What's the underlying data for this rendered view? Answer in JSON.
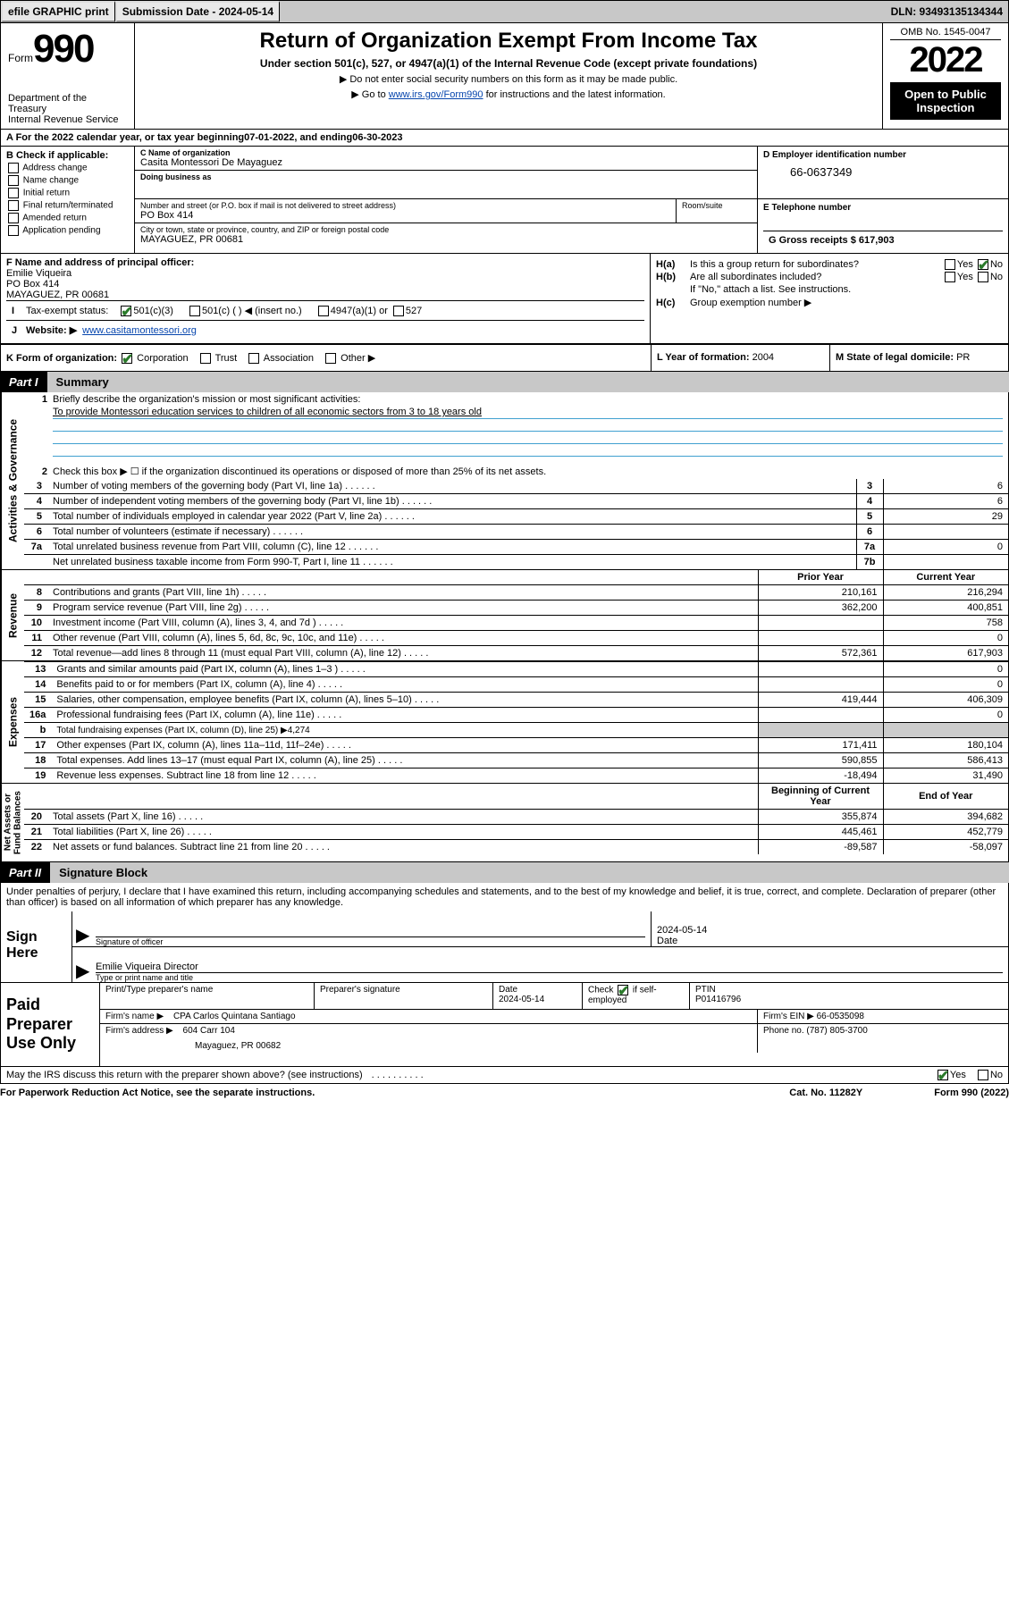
{
  "topbar": {
    "efile": "efile GRAPHIC print",
    "submission_label": "Submission Date - 2024-05-14",
    "dln_label": "DLN: 93493135134344"
  },
  "header": {
    "form_word": "Form",
    "form_number": "990",
    "dept": "Department of the Treasury\nInternal Revenue Service",
    "title": "Return of Organization Exempt From Income Tax",
    "subtitle": "Under section 501(c), 527, or 4947(a)(1) of the Internal Revenue Code (except private foundations)",
    "note1": "Do not enter social security numbers on this form as it may be made public.",
    "note2_prefix": "Go to ",
    "note2_link": "www.irs.gov/Form990",
    "note2_suffix": " for instructions and the latest information.",
    "omb": "OMB No. 1545-0047",
    "year": "2022",
    "open": "Open to Public Inspection"
  },
  "row_a": {
    "prefix": "A For the 2022 calendar year, or tax year beginning ",
    "begin": "07-01-2022",
    "mid": " , and ending ",
    "end": "06-30-2023"
  },
  "section_b": {
    "label": "B Check if applicable:",
    "opts": [
      "Address change",
      "Name change",
      "Initial return",
      "Final return/terminated",
      "Amended return",
      "Application pending"
    ]
  },
  "section_c": {
    "name_label": "C Name of organization",
    "name": "Casita Montessori De Mayaguez",
    "dba_label": "Doing business as",
    "dba": "",
    "addr_label": "Number and street (or P.O. box if mail is not delivered to street address)",
    "addr": "PO Box 414",
    "room_label": "Room/suite",
    "city_label": "City or town, state or province, country, and ZIP or foreign postal code",
    "city": "MAYAGUEZ, PR  00681"
  },
  "section_d": {
    "label": "D Employer identification number",
    "ein": "66-0637349"
  },
  "section_e": {
    "label": "E Telephone number",
    "phone": ""
  },
  "section_g": {
    "label": "G Gross receipts $",
    "val": "617,903"
  },
  "section_f": {
    "label": "F  Name and address of principal officer:",
    "name": "Emilie Viqueira",
    "addr": "PO Box 414",
    "city": "MAYAGUEZ, PR  00681"
  },
  "section_h": {
    "ha": "Is this a group return for subordinates?",
    "hb": "Are all subordinates included?",
    "hb_note": "If \"No,\" attach a list. See instructions.",
    "hc": "Group exemption number ▶",
    "yes": "Yes",
    "no": "No"
  },
  "row_i": {
    "label": "Tax-exempt status:",
    "opts": [
      "501(c)(3)",
      "501(c) (  ) ◀ (insert no.)",
      "4947(a)(1) or",
      "527"
    ]
  },
  "row_j": {
    "label": "Website: ▶",
    "val": "www.casitamontessori.org"
  },
  "row_k": {
    "label": "K Form of organization:",
    "opts": [
      "Corporation",
      "Trust",
      "Association",
      "Other ▶"
    ]
  },
  "row_l": {
    "label": "L Year of formation:",
    "val": "2004"
  },
  "row_m": {
    "label": "M State of legal domicile:",
    "val": "PR"
  },
  "part1": {
    "num": "Part I",
    "title": "Summary"
  },
  "summary": {
    "line1": "Briefly describe the organization's mission or most significant activities:",
    "mission": "To provide Montessori education services to children of all economic sectors from 3 to 18 years old",
    "line2": "Check this box ▶ ☐  if the organization discontinued its operations or disposed of more than 25% of its net assets.",
    "gov_rows": [
      {
        "n": "3",
        "t": "Number of voting members of the governing body (Part VI, line 1a)",
        "k": "3",
        "v": "6"
      },
      {
        "n": "4",
        "t": "Number of independent voting members of the governing body (Part VI, line 1b)",
        "k": "4",
        "v": "6"
      },
      {
        "n": "5",
        "t": "Total number of individuals employed in calendar year 2022 (Part V, line 2a)",
        "k": "5",
        "v": "29"
      },
      {
        "n": "6",
        "t": "Total number of volunteers (estimate if necessary)",
        "k": "6",
        "v": ""
      },
      {
        "n": "7a",
        "t": "Total unrelated business revenue from Part VIII, column (C), line 12",
        "k": "7a",
        "v": "0"
      },
      {
        "n": "",
        "t": "Net unrelated business taxable income from Form 990-T, Part I, line 11",
        "k": "7b",
        "v": ""
      }
    ],
    "col_prior": "Prior Year",
    "col_current": "Current Year",
    "rev_rows": [
      {
        "n": "8",
        "t": "Contributions and grants (Part VIII, line 1h)",
        "p": "210,161",
        "c": "216,294"
      },
      {
        "n": "9",
        "t": "Program service revenue (Part VIII, line 2g)",
        "p": "362,200",
        "c": "400,851"
      },
      {
        "n": "10",
        "t": "Investment income (Part VIII, column (A), lines 3, 4, and 7d )",
        "p": "",
        "c": "758"
      },
      {
        "n": "11",
        "t": "Other revenue (Part VIII, column (A), lines 5, 6d, 8c, 9c, 10c, and 11e)",
        "p": "",
        "c": "0"
      },
      {
        "n": "12",
        "t": "Total revenue—add lines 8 through 11 (must equal Part VIII, column (A), line 12)",
        "p": "572,361",
        "c": "617,903"
      }
    ],
    "exp_rows": [
      {
        "n": "13",
        "t": "Grants and similar amounts paid (Part IX, column (A), lines 1–3 )",
        "p": "",
        "c": "0"
      },
      {
        "n": "14",
        "t": "Benefits paid to or for members (Part IX, column (A), line 4)",
        "p": "",
        "c": "0"
      },
      {
        "n": "15",
        "t": "Salaries, other compensation, employee benefits (Part IX, column (A), lines 5–10)",
        "p": "419,444",
        "c": "406,309"
      },
      {
        "n": "16a",
        "t": "Professional fundraising fees (Part IX, column (A), line 11e)",
        "p": "",
        "c": "0"
      },
      {
        "n": "b",
        "t": "Total fundraising expenses (Part IX, column (D), line 25) ▶4,274",
        "p": null,
        "c": null
      },
      {
        "n": "17",
        "t": "Other expenses (Part IX, column (A), lines 11a–11d, 11f–24e)",
        "p": "171,411",
        "c": "180,104"
      },
      {
        "n": "18",
        "t": "Total expenses. Add lines 13–17 (must equal Part IX, column (A), line 25)",
        "p": "590,855",
        "c": "586,413"
      },
      {
        "n": "19",
        "t": "Revenue less expenses. Subtract line 18 from line 12",
        "p": "-18,494",
        "c": "31,490"
      }
    ],
    "col_begin": "Beginning of Current Year",
    "col_end": "End of Year",
    "na_rows": [
      {
        "n": "20",
        "t": "Total assets (Part X, line 16)",
        "p": "355,874",
        "c": "394,682"
      },
      {
        "n": "21",
        "t": "Total liabilities (Part X, line 26)",
        "p": "445,461",
        "c": "452,779"
      },
      {
        "n": "22",
        "t": "Net assets or fund balances. Subtract line 21 from line 20",
        "p": "-89,587",
        "c": "-58,097"
      }
    ],
    "vtabs": {
      "gov": "Activities & Governance",
      "rev": "Revenue",
      "exp": "Expenses",
      "na": "Net Assets or\nFund Balances"
    }
  },
  "part2": {
    "num": "Part II",
    "title": "Signature Block"
  },
  "signature": {
    "penalty": "Under penalties of perjury, I declare that I have examined this return, including accompanying schedules and statements, and to the best of my knowledge and belief, it is true, correct, and complete. Declaration of preparer (other than officer) is based on all information of which preparer has any knowledge.",
    "sign_here": "Sign Here",
    "sig_label": "Signature of officer",
    "date_label": "Date",
    "date": "2024-05-14",
    "name": "Emilie Viqueira  Director",
    "name_label": "Type or print name and title"
  },
  "preparer": {
    "title": "Paid Preparer Use Only",
    "h1": "Print/Type preparer's name",
    "h2": "Preparer's signature",
    "h3_label": "Date",
    "h3": "2024-05-14",
    "h4_label": "Check",
    "h4_suffix": "if self-employed",
    "h5_label": "PTIN",
    "h5": "P01416796",
    "firm_name_label": "Firm's name    ▶",
    "firm_name": "CPA Carlos Quintana Santiago",
    "firm_ein_label": "Firm's EIN ▶",
    "firm_ein": "66-0535098",
    "firm_addr_label": "Firm's address ▶",
    "firm_addr1": "604 Carr 104",
    "firm_addr2": "Mayaguez, PR  00682",
    "phone_label": "Phone no.",
    "phone": "(787) 805-3700"
  },
  "footer": {
    "discuss": "May the IRS discuss this return with the preparer shown above? (see instructions)",
    "yes": "Yes",
    "no": "No",
    "paperwork": "For Paperwork Reduction Act Notice, see the separate instructions.",
    "cat": "Cat. No. 11282Y",
    "formref": "Form 990 (2022)"
  }
}
